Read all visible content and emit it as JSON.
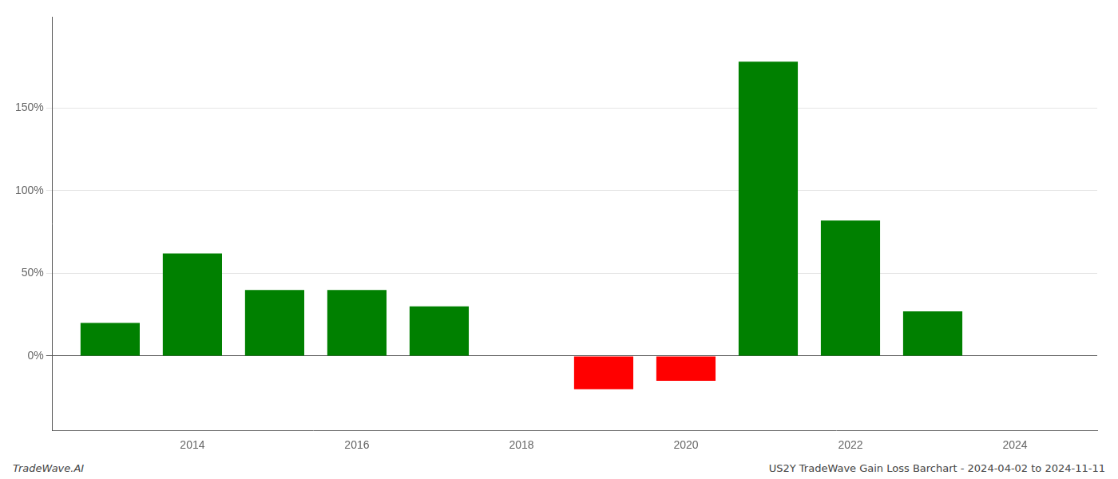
{
  "chart_data": {
    "type": "bar",
    "x": [
      2013,
      2014,
      2015,
      2016,
      2017,
      2019,
      2020,
      2021,
      2022,
      2023
    ],
    "values": [
      20,
      62,
      40,
      40,
      30,
      -20,
      -15,
      178,
      82,
      27
    ],
    "colors": [
      "#008000",
      "#008000",
      "#008000",
      "#008000",
      "#008000",
      "#ff0000",
      "#ff0000",
      "#008000",
      "#008000",
      "#008000"
    ],
    "xlim": [
      2012.3,
      2025.0
    ],
    "xticks": [
      2014,
      2016,
      2018,
      2020,
      2022,
      2024
    ],
    "ylim": [
      -45,
      205
    ],
    "yticks": [
      {
        "value": 0,
        "label": "0%"
      },
      {
        "value": 50,
        "label": "50%"
      },
      {
        "value": 100,
        "label": "100%"
      },
      {
        "value": 150,
        "label": "150%"
      }
    ],
    "grid": "y",
    "annotations": [
      "TradeWave.AI",
      "US2Y TradeWave Gain Loss Barchart - 2024-04-02 to 2024-11-11"
    ]
  }
}
